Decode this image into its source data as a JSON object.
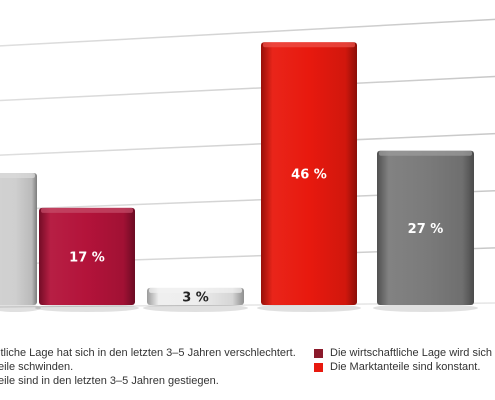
{
  "chart_data": {
    "type": "bar",
    "title": "",
    "xlabel": "",
    "ylabel": "",
    "ylim": [
      0,
      52
    ],
    "grid": true,
    "value_suffix": " %",
    "legend_placement": "bottom",
    "colors": {
      "gray": "#a8a8a8",
      "crimson": "#b3133a",
      "light": "#eeeeee",
      "red": "#e8190e",
      "darkgray": "#7b7b7b",
      "grid": "#c8c8c8"
    },
    "bars": [
      {
        "value": null,
        "color": "#cfcfcf",
        "text_color": "#ffffff"
      },
      {
        "value": 17,
        "color": "#b3133a",
        "text_color": "#ffffff"
      },
      {
        "value": 3,
        "color": "#eeeeee",
        "text_color": "#222222"
      },
      {
        "value": 46,
        "color": "#e8190e",
        "text_color": "#ffffff"
      },
      {
        "value": 27,
        "color": "#7b7b7b",
        "text_color": "#ffffff"
      }
    ],
    "legend": {
      "left": [
        {
          "label": "ltliche Lage hat sich in den letzten 3–5 Jahren verschlechtert."
        },
        {
          "label": "eile schwinden."
        },
        {
          "label": "eile sind in den letzten 3–5 Jahren gestiegen."
        }
      ],
      "right": [
        {
          "label": "Die wirtschaftliche Lage wird sich",
          "color": "#8b1a2b"
        },
        {
          "label": "Die Marktanteile sind konstant.",
          "color": "#e8190e"
        }
      ]
    }
  }
}
